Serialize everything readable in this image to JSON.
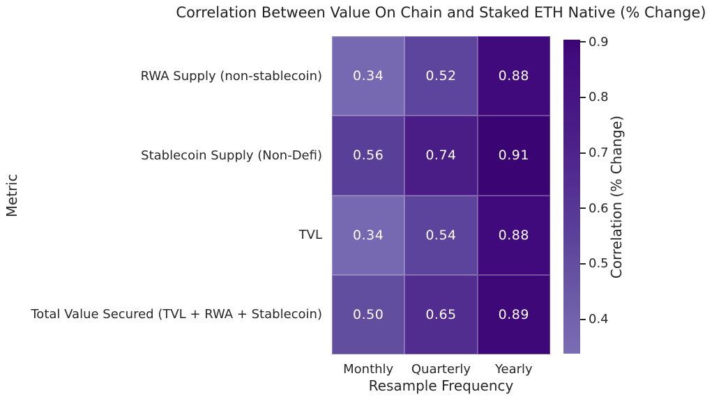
{
  "chart_data": {
    "type": "heatmap",
    "title": "Correlation Between Value On Chain and Staked ETH Native (% Change)",
    "xlabel": "Resample Frequency",
    "ylabel": "Metric",
    "columns": [
      "Monthly",
      "Quarterly",
      "Yearly"
    ],
    "rows": [
      "RWA Supply (non-stablecoin)",
      "Stablecoin Supply (Non-Defi)",
      "TVL",
      "Total Value Secured (TVL + RWA + Stablecoin)"
    ],
    "values": [
      [
        0.34,
        0.52,
        0.88
      ],
      [
        0.56,
        0.74,
        0.91
      ],
      [
        0.34,
        0.54,
        0.88
      ],
      [
        0.5,
        0.65,
        0.89
      ]
    ],
    "cell_colors": [
      [
        "#7669b2",
        "#5d459d",
        "#400a7c"
      ],
      [
        "#5a3f99",
        "#4a1d86",
        "#3b0473"
      ],
      [
        "#7669b2",
        "#5c439c",
        "#400a7c"
      ],
      [
        "#624e9e",
        "#522d90",
        "#3f0878"
      ]
    ],
    "annotation_text_color": "#ffffff",
    "background_color": "#ffffff",
    "text_color": "#262626",
    "colorbar": {
      "label": "Correlation (% Change)",
      "tick_labels": [
        "0.9",
        "0.8",
        "0.7",
        "0.6",
        "0.5",
        "0.4"
      ],
      "tick_values": [
        0.9,
        0.8,
        0.7,
        0.6,
        0.5,
        0.4
      ],
      "vmin": 0.338,
      "vmax": 0.904,
      "gradient_stops": [
        {
          "pos": 0.0,
          "color": "#7a6eb4"
        },
        {
          "pos": 0.286,
          "color": "#624e9e"
        },
        {
          "pos": 0.392,
          "color": "#5a3f99"
        },
        {
          "pos": 0.551,
          "color": "#522d90"
        },
        {
          "pos": 0.71,
          "color": "#4a1d86"
        },
        {
          "pos": 0.958,
          "color": "#400a7c"
        },
        {
          "pos": 1.0,
          "color": "#3b0473"
        }
      ]
    },
    "legend_position": "right",
    "grid": false
  }
}
